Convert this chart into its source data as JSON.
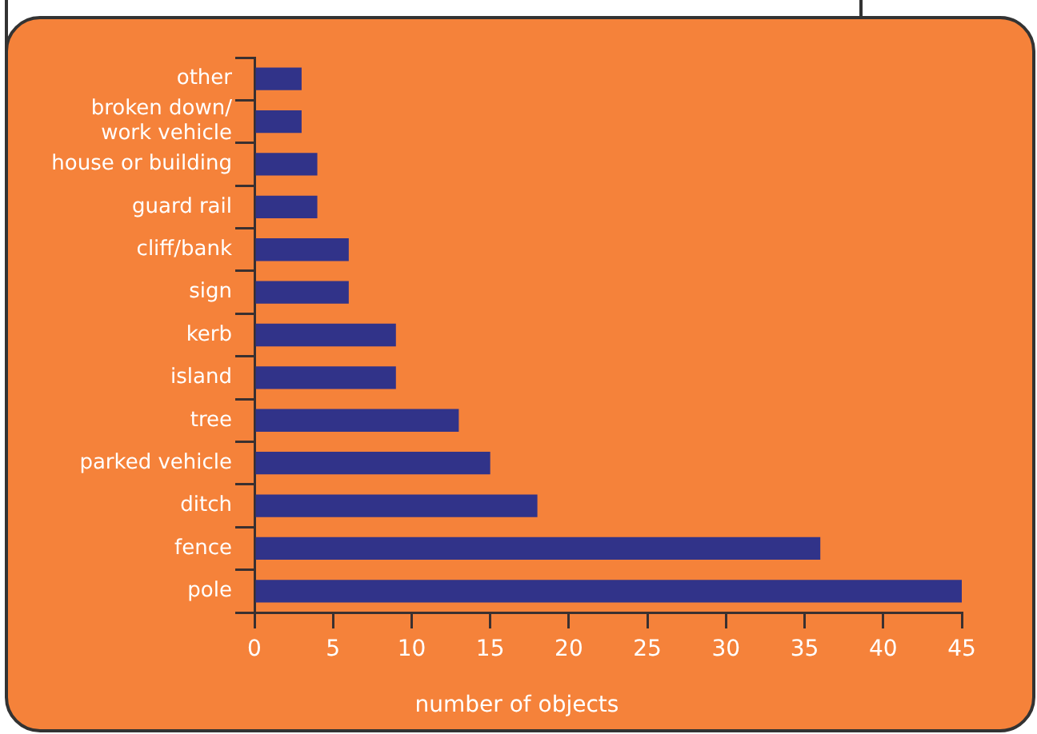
{
  "chart_data": {
    "type": "bar",
    "orientation": "horizontal",
    "categories": [
      "other",
      "broken down/\nwork vehicle",
      "house or building",
      "guard rail",
      "cliff/bank",
      "sign",
      "kerb",
      "island",
      "tree",
      "parked vehicle",
      "ditch",
      "fence",
      "pole"
    ],
    "values": [
      3,
      3,
      4,
      4,
      6,
      6,
      9,
      9,
      13,
      15,
      18,
      36,
      45
    ],
    "color": "#313389",
    "xlim": [
      0,
      45
    ],
    "xticks": [
      0,
      5,
      10,
      15,
      20,
      25,
      30,
      35,
      40,
      45
    ],
    "xlabel": "number of objects",
    "grid": false
  }
}
